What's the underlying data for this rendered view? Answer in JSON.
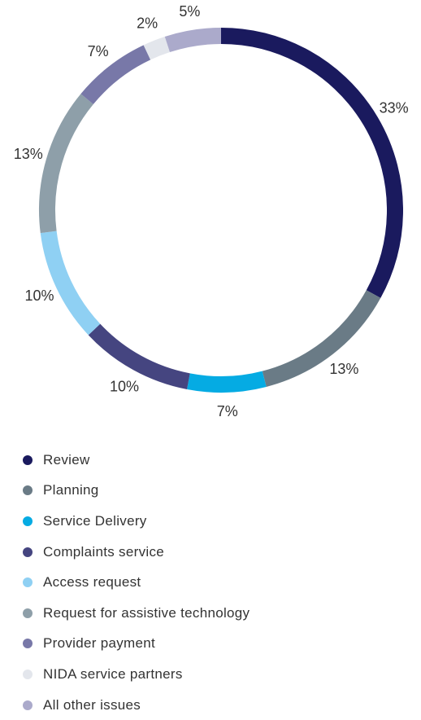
{
  "chart_data": {
    "type": "pie",
    "variant": "donut",
    "value_suffix": "%",
    "legend_position": "bottom",
    "slices": [
      {
        "name": "Review",
        "value": 33,
        "color": "#1a1a5e"
      },
      {
        "name": "Planning",
        "value": 13,
        "color": "#6a7b86"
      },
      {
        "name": "Service Delivery",
        "value": 7,
        "color": "#05abe3"
      },
      {
        "name": "Complaints service",
        "value": 10,
        "color": "#454580"
      },
      {
        "name": "Access request",
        "value": 10,
        "color": "#8fd0f3"
      },
      {
        "name": "Request for assistive technology",
        "value": 13,
        "color": "#8e9fa9"
      },
      {
        "name": "Provider payment",
        "value": 7,
        "color": "#7878a8"
      },
      {
        "name": "NIDA service partners",
        "value": 2,
        "color": "#e3e6ec"
      },
      {
        "name": "All other issues",
        "value": 5,
        "color": "#abaacb"
      }
    ]
  }
}
